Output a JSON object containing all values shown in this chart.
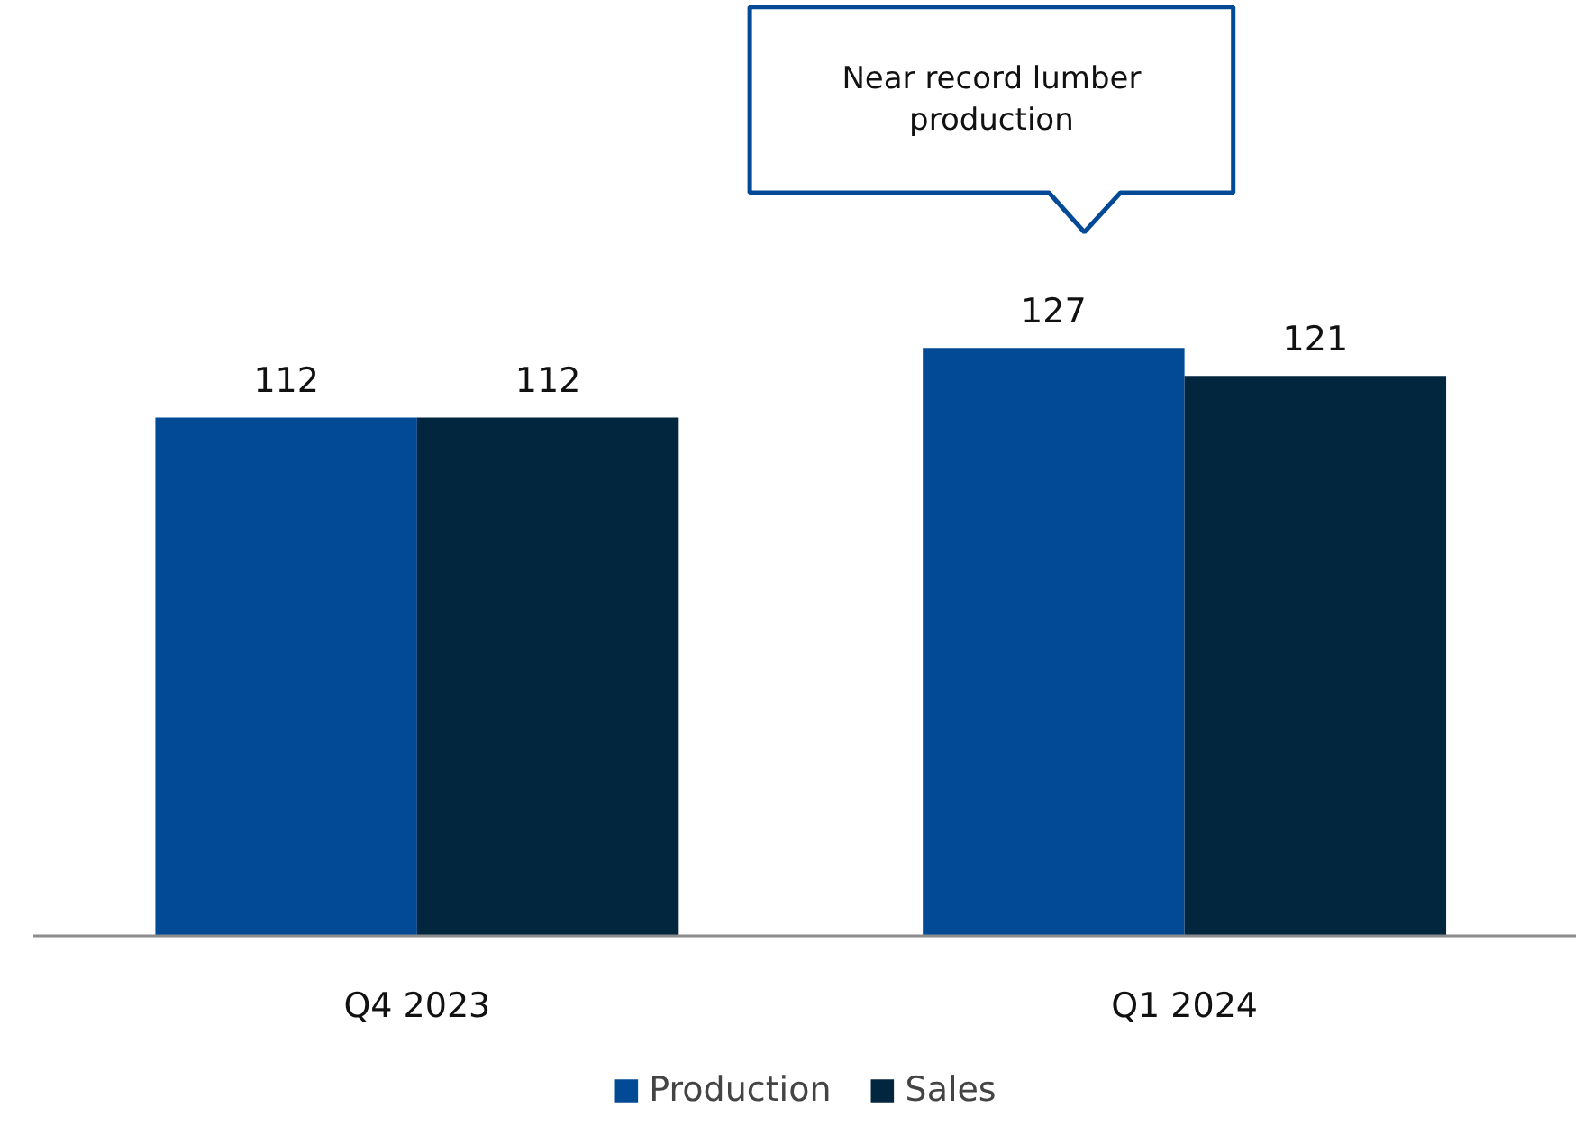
{
  "chart_data": {
    "type": "bar",
    "categories": [
      "Q4 2023",
      "Q1 2024"
    ],
    "series": [
      {
        "name": "Production",
        "color": "#034a96",
        "values": [
          112,
          127
        ]
      },
      {
        "name": "Sales",
        "color": "#03263f",
        "values": [
          112,
          121
        ]
      }
    ],
    "data_labels": true,
    "grid": false,
    "legend": "bottom",
    "annotations": [
      "Near record lumber production"
    ]
  }
}
